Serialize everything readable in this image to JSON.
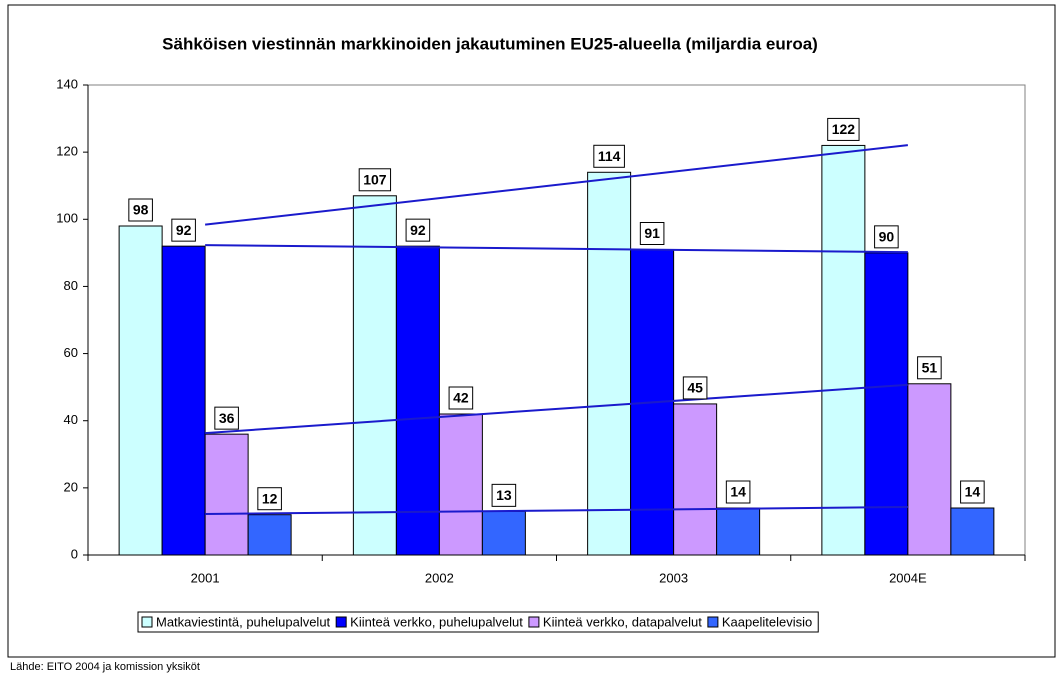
{
  "chart_data": {
    "type": "bar",
    "title": "Sähköisen viestinnän markkinoiden jakautuminen EU25-alueella (miljardia euroa)",
    "categories": [
      "2001",
      "2002",
      "2003",
      "2004E"
    ],
    "series": [
      {
        "name": "Matkaviestintä, puhelupalvelut",
        "color": "#ccffff",
        "values": [
          98,
          107,
          114,
          122
        ]
      },
      {
        "name": "Kiinteä verkko, puhelupalvelut",
        "color": "#0000ff",
        "values": [
          92,
          92,
          91,
          90
        ]
      },
      {
        "name": "Kiinteä verkko, datapalvelut",
        "color": "#cc99ff",
        "values": [
          36,
          42,
          45,
          51
        ]
      },
      {
        "name": "Kaapelitelevisio",
        "color": "#3366ff",
        "values": [
          12,
          13,
          14,
          14
        ]
      }
    ],
    "ylim": [
      0,
      140
    ],
    "yticks": [
      0,
      20,
      40,
      60,
      80,
      100,
      120,
      140
    ],
    "trendline": true,
    "trendline_color": "#1a1acc",
    "legend": "bottom",
    "source": "Lähde: EITO 2004 ja komission yksiköt"
  }
}
